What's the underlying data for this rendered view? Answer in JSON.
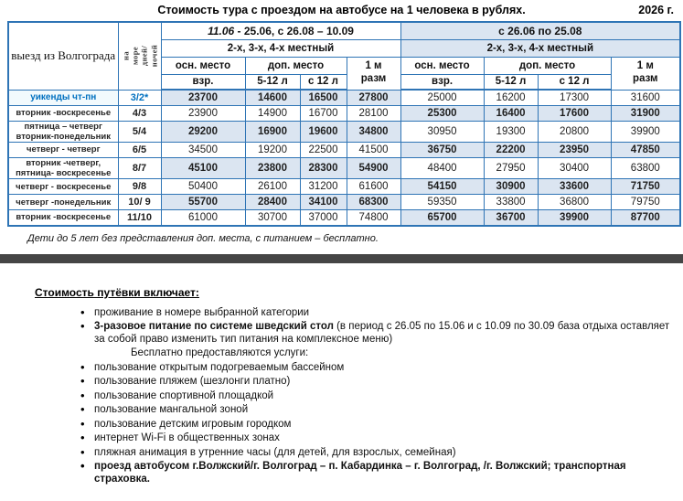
{
  "page": {
    "title": "Стоимость тура  с проездом на автобусе на  1 человека в рублях.",
    "year": "2026 г."
  },
  "table": {
    "corner": "выезд из Волгограда",
    "days_header": "на море\nдней/\nночей",
    "period1": {
      "italic": "11.06",
      "rest": " -  25.06,   с 26.08 – 10.09"
    },
    "period2": "с 26.06 по 25.08",
    "room_type": "2-х, 3-х, 4-х местный",
    "main_seat": "осн. место",
    "extra_seat": "доп. место",
    "single_room": "1 м\nразм",
    "adult": "взр.",
    "child_5_12": "5-12 л",
    "from_12": "с 12 л",
    "rows": [
      {
        "label": "уикенды чт-пн",
        "days": "3/2*",
        "left": [
          "23700",
          "14600",
          "16500",
          "27800"
        ],
        "right": [
          "25000",
          "16200",
          "17300",
          "31600"
        ],
        "shaded": "left",
        "weekend": true
      },
      {
        "label": "вторник -воскресенье",
        "days": "4/3",
        "left": [
          "23900",
          "14900",
          "16700",
          "28100"
        ],
        "right": [
          "25300",
          "16400",
          "17600",
          "31900"
        ],
        "shaded": "right"
      },
      {
        "label": "пятница – четверг\nвторник-понедельник",
        "days": "5/4",
        "left": [
          "29200",
          "16900",
          "19600",
          "34800"
        ],
        "right": [
          "30950",
          "19300",
          "20800",
          "39900"
        ],
        "shaded": "left"
      },
      {
        "label": "четверг - четверг",
        "days": "6/5",
        "left": [
          "34500",
          "19200",
          "22500",
          "41500"
        ],
        "right": [
          "36750",
          "22200",
          "23950",
          "47850"
        ],
        "shaded": "right"
      },
      {
        "label": "вторник -четверг,\nпятница- воскресенье",
        "days": "8/7",
        "left": [
          "45100",
          "23800",
          "28300",
          "54900"
        ],
        "right": [
          "48400",
          "27950",
          "30400",
          "63800"
        ],
        "shaded": "left"
      },
      {
        "label": "четверг - воскресенье",
        "days": "9/8",
        "left": [
          "50400",
          "26100",
          "31200",
          "61600"
        ],
        "right": [
          "54150",
          "30900",
          "33600",
          "71750"
        ],
        "shaded": "right"
      },
      {
        "label": "четверг -понедельник",
        "days": "10/ 9",
        "left": [
          "55700",
          "28400",
          "34100",
          "68300"
        ],
        "right": [
          "59350",
          "33800",
          "36800",
          "79750"
        ],
        "shaded": "left"
      },
      {
        "label": "вторник -воскресенье",
        "days": "11/10",
        "left": [
          "61000",
          "30700",
          "37000",
          "74800"
        ],
        "right": [
          "65700",
          "36700",
          "39900",
          "87700"
        ],
        "shaded": "right"
      }
    ],
    "note": "Дети до 5 лет без представления доп. места, с питанием – бесплатно."
  },
  "includes": {
    "heading": "Стоимость путёвки включает:",
    "items": [
      {
        "text": "проживание в номере выбранной категории"
      },
      {
        "lead": "3-разовое питание по системе шведский стол",
        "text": " (в период с 26.05 по 15.06 и с 10.09 по 30.09 база отдыха оставляет за собой право изменить тип питания на комплексное меню)"
      },
      {
        "plain": "Бесплатно предоставляются услуги:"
      },
      {
        "text": "пользование открытым подогреваемым бассейном"
      },
      {
        "text": "пользование пляжем (шезлонги платно)"
      },
      {
        "text": "пользование спортивной площадкой"
      },
      {
        "text": "пользование мангальной зоной"
      },
      {
        "text": "пользование детским игровым городком"
      },
      {
        "text": "интернет Wi-Fi в общественных зонах"
      },
      {
        "text": "пляжная анимация в утренние часы (для детей, для взрослых, семейная)"
      },
      {
        "text": "проезд автобусом г.Волжский/г. Волгоград –  п. Кабардинка – г. Волгоград, /г. Волжский; транспортная страховка.",
        "bold": true
      }
    ]
  },
  "colors": {
    "border_blue": "#2e74b5",
    "shade_blue": "#dbe5f1",
    "accent_blue": "#0070c0",
    "label_row_border": "#49b6da",
    "divider_gray": "#454545"
  }
}
